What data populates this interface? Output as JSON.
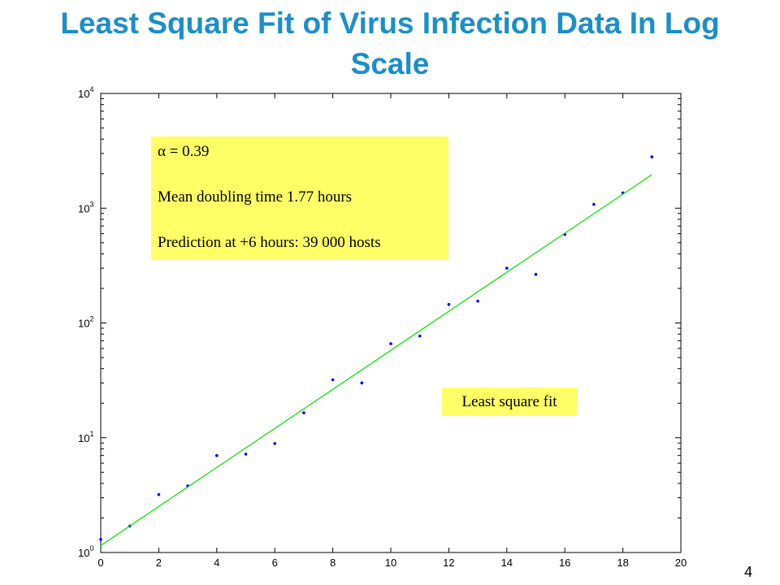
{
  "slide": {
    "title": "Least Square Fit of Virus Infection Data In Log Scale",
    "page_number": "4"
  },
  "annotation": {
    "alpha_symbol": "α",
    "alpha_text": " = 0.39",
    "doubling_text": "Mean doubling time 1.77 hours",
    "prediction_text": "Prediction at +6 hours: 39 000 hosts"
  },
  "legend": {
    "fit_label": "Least square fit"
  },
  "chart_data": {
    "type": "scatter",
    "title": "Least Square Fit of Virus Infection Data In Log Scale",
    "xlabel": "",
    "ylabel": "",
    "xlim": [
      0,
      20
    ],
    "ylim": [
      1,
      10000
    ],
    "yscale": "log",
    "grid": false,
    "x_ticks": [
      "0",
      "2",
      "4",
      "6",
      "8",
      "10",
      "12",
      "14",
      "16",
      "18",
      "20"
    ],
    "y_ticks": [
      {
        "base": "10",
        "exp": "0"
      },
      {
        "base": "10",
        "exp": "1"
      },
      {
        "base": "10",
        "exp": "2"
      },
      {
        "base": "10",
        "exp": "3"
      },
      {
        "base": "10",
        "exp": "4"
      }
    ],
    "series": [
      {
        "name": "",
        "kind": "points",
        "color": "#0000ff",
        "x": [
          0,
          1,
          2,
          3,
          4,
          5,
          6,
          7,
          8,
          9,
          10,
          11,
          12,
          13,
          14,
          15,
          16,
          17,
          18,
          19
        ],
        "y": [
          1.3,
          1.7,
          3.2,
          3.8,
          7.0,
          7.2,
          8.9,
          16.5,
          32,
          30,
          66,
          77,
          145,
          155,
          300,
          265,
          590,
          1080,
          1360,
          2800
        ]
      },
      {
        "name": "Least square fit",
        "kind": "line",
        "color": "#00e000",
        "x": [
          0,
          19
        ],
        "y": [
          1.15,
          1960
        ]
      }
    ]
  }
}
